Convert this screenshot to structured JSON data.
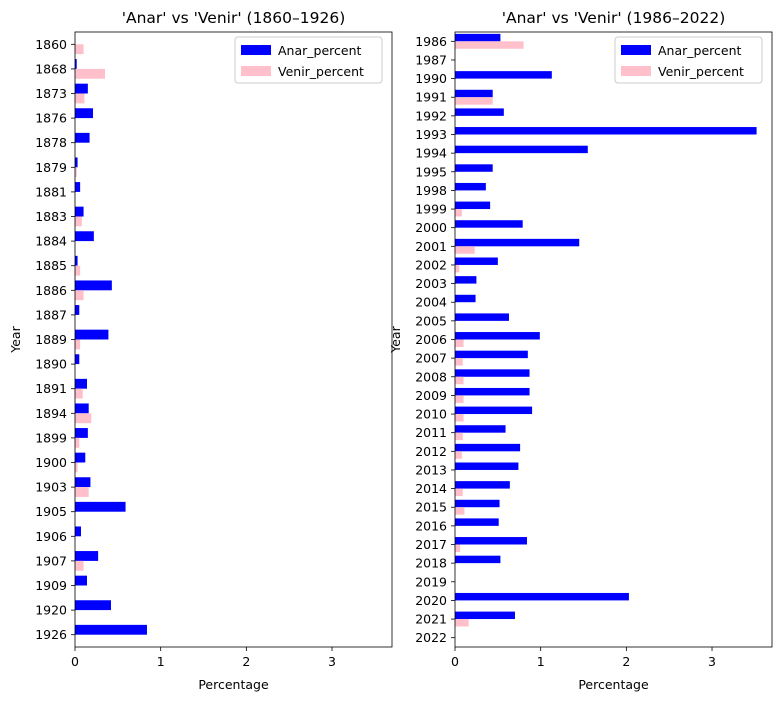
{
  "chart_data": [
    {
      "type": "bar",
      "orientation": "horizontal",
      "title": "'Anar' vs 'Venir' (1860–1926)",
      "xlabel": "Percentage",
      "ylabel": "Year",
      "xlim": [
        0,
        3.7
      ],
      "xticks": [
        "0",
        "1",
        "2",
        "3"
      ],
      "legend_position": "top-right",
      "categories": [
        "1860",
        "1868",
        "1873",
        "1876",
        "1878",
        "1879",
        "1881",
        "1883",
        "1884",
        "1885",
        "1886",
        "1887",
        "1889",
        "1890",
        "1891",
        "1894",
        "1899",
        "1900",
        "1903",
        "1905",
        "1906",
        "1907",
        "1909",
        "1920",
        "1926"
      ],
      "series": [
        {
          "name": "Anar_percent",
          "color": "#0000ff",
          "values": [
            0.0,
            0.02,
            0.15,
            0.21,
            0.17,
            0.03,
            0.06,
            0.1,
            0.22,
            0.03,
            0.43,
            0.05,
            0.39,
            0.05,
            0.14,
            0.16,
            0.15,
            0.12,
            0.18,
            0.59,
            0.07,
            0.27,
            0.14,
            0.42,
            0.84
          ]
        },
        {
          "name": "Venir_percent",
          "color": "#ffc0cb",
          "values": [
            0.1,
            0.35,
            0.11,
            0.0,
            0.0,
            0.02,
            0.0,
            0.08,
            0.0,
            0.06,
            0.1,
            0.0,
            0.06,
            0.0,
            0.09,
            0.19,
            0.05,
            0.03,
            0.16,
            0.0,
            0.0,
            0.1,
            0.0,
            0.0,
            0.0
          ]
        }
      ]
    },
    {
      "type": "bar",
      "orientation": "horizontal",
      "title": "'Anar' vs 'Venir' (1986–2022)",
      "xlabel": "Percentage",
      "ylabel": "Year",
      "xlim": [
        0,
        3.7
      ],
      "xticks": [
        "0",
        "1",
        "2",
        "3"
      ],
      "legend_position": "top-right",
      "categories": [
        "1986",
        "1987",
        "1990",
        "1991",
        "1992",
        "1993",
        "1994",
        "1995",
        "1998",
        "1999",
        "2000",
        "2001",
        "2002",
        "2003",
        "2004",
        "2005",
        "2006",
        "2007",
        "2008",
        "2009",
        "2010",
        "2011",
        "2012",
        "2013",
        "2014",
        "2015",
        "2016",
        "2017",
        "2018",
        "2019",
        "2020",
        "2021",
        "2022"
      ],
      "series": [
        {
          "name": "Anar_percent",
          "color": "#0000ff",
          "values": [
            0.53,
            0.0,
            1.13,
            0.44,
            0.57,
            3.52,
            1.55,
            0.44,
            0.36,
            0.41,
            0.79,
            1.45,
            0.5,
            0.25,
            0.24,
            0.63,
            0.99,
            0.85,
            0.87,
            0.87,
            0.9,
            0.59,
            0.76,
            0.74,
            0.64,
            0.52,
            0.51,
            0.84,
            0.53,
            0.0,
            2.03,
            0.7,
            0.0
          ]
        },
        {
          "name": "Venir_percent",
          "color": "#ffc0cb",
          "values": [
            0.8,
            0.0,
            0.0,
            0.44,
            0.0,
            0.0,
            0.0,
            0.0,
            0.0,
            0.08,
            0.0,
            0.23,
            0.05,
            0.0,
            0.0,
            0.0,
            0.1,
            0.09,
            0.1,
            0.1,
            0.1,
            0.09,
            0.08,
            0.0,
            0.09,
            0.11,
            0.0,
            0.06,
            0.0,
            0.0,
            0.0,
            0.16,
            0.0
          ]
        }
      ]
    }
  ]
}
